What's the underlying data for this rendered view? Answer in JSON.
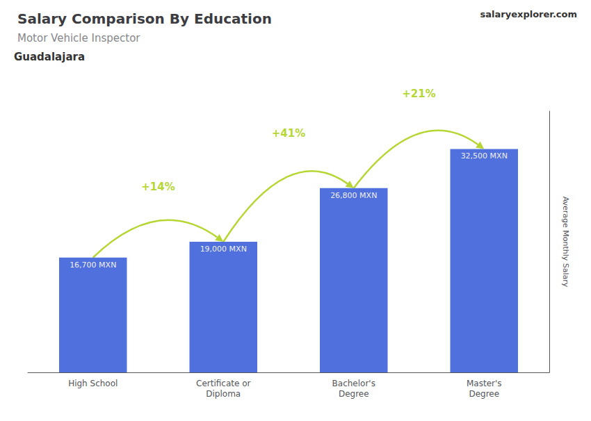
{
  "chart_data": {
    "type": "bar",
    "title": "Salary Comparison By Education",
    "subtitle": "Motor Vehicle Inspector",
    "ylabel": "Average Monthly Salary",
    "categories": [
      "High School",
      "Certificate or\nDiploma",
      "Bachelor's\nDegree",
      "Master's\nDegree"
    ],
    "values": [
      16700,
      19000,
      26800,
      32500
    ],
    "value_labels": [
      "16,700 MXN",
      "19,000 MXN",
      "26,800 MXN",
      "32,500 MXN"
    ],
    "data_labels": true,
    "ylim": [
      0,
      38000
    ],
    "grid": false,
    "tick_labels": "x",
    "annotations": [
      {
        "text": "Guadalajara"
      },
      {
        "text": "salaryexplorer.com"
      },
      {
        "text": "+14%",
        "between": [
          "High School",
          "Certificate or\nDiploma"
        ]
      },
      {
        "text": "+41%",
        "between": [
          "Certificate or\nDiploma",
          "Bachelor's\nDegree"
        ]
      },
      {
        "text": "+21%",
        "between": [
          "Bachelor's\nDegree",
          "Master's\nDegree"
        ]
      }
    ]
  }
}
